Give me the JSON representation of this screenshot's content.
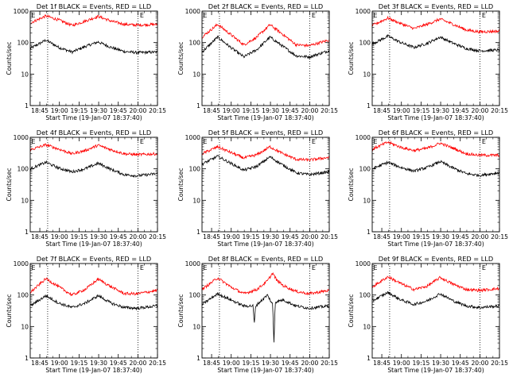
{
  "window": {
    "title": ""
  },
  "figure": {
    "background": "#ffffff",
    "axis_color": "#000000",
    "series_colors": {
      "events": "#000000",
      "lld": "#ff0000"
    }
  },
  "chart_data": [
    {
      "type": "line",
      "detector": "1f",
      "title": "Det 1f BLACK = Events, RED = LLD",
      "xlabel": "Start Time (19-Jan-07 18:37:40)",
      "ylabel": "Counts/sec",
      "x_ticks": [
        "18:45",
        "19:00",
        "19:15",
        "19:30",
        "19:45",
        "20:00",
        "20:15"
      ],
      "y_ticks": [
        "1",
        "10",
        "100",
        "1000"
      ],
      "ylim": [
        1,
        1000
      ],
      "y_scale": "log",
      "grid": false,
      "xlim_minutes_after_start": [
        0,
        97.3
      ],
      "annotations": [
        "E",
        "E"
      ],
      "dotted_vertical_lines_at": [
        "18:51",
        "20:00"
      ],
      "series": [
        {
          "name": "Events",
          "color": "#000000",
          "x_minutes": [
            0,
            12,
            22,
            32,
            42,
            52,
            62,
            72,
            82,
            97
          ],
          "values": [
            65,
            120,
            70,
            50,
            75,
            105,
            70,
            52,
            48,
            50
          ]
        },
        {
          "name": "LLD",
          "color": "#ff0000",
          "x_minutes": [
            0,
            12,
            22,
            32,
            42,
            52,
            62,
            72,
            82,
            97
          ],
          "values": [
            420,
            700,
            520,
            350,
            480,
            680,
            480,
            380,
            360,
            380
          ]
        }
      ]
    },
    {
      "type": "line",
      "detector": "2f",
      "title": "Det 2f BLACK = Events, RED = LLD",
      "xlabel": "Start Time (19-Jan-07 18:37:40)",
      "ylabel": "Counts/sec",
      "x_ticks": [
        "18:45",
        "19:00",
        "19:15",
        "19:30",
        "19:45",
        "20:00",
        "20:15"
      ],
      "y_ticks": [
        "1",
        "10",
        "100",
        "1000"
      ],
      "ylim": [
        1,
        1000
      ],
      "y_scale": "log",
      "grid": false,
      "xlim_minutes_after_start": [
        0,
        97.3
      ],
      "annotations": [
        "E",
        "E"
      ],
      "dotted_vertical_lines_at": [
        "18:51",
        "20:00"
      ],
      "series": [
        {
          "name": "Events",
          "color": "#000000",
          "x_minutes": [
            0,
            12,
            22,
            32,
            42,
            52,
            62,
            72,
            82,
            97
          ],
          "values": [
            50,
            150,
            70,
            35,
            60,
            150,
            75,
            38,
            35,
            55
          ]
        },
        {
          "name": "LLD",
          "color": "#ff0000",
          "x_minutes": [
            0,
            12,
            22,
            32,
            42,
            52,
            62,
            72,
            82,
            97
          ],
          "values": [
            150,
            380,
            180,
            85,
            150,
            370,
            180,
            85,
            80,
            120
          ]
        }
      ]
    },
    {
      "type": "line",
      "detector": "3f",
      "title": "Det 3f BLACK = Events, RED = LLD",
      "xlabel": "Start Time (19-Jan-07 18:37:40)",
      "ylabel": "Counts/sec",
      "x_ticks": [
        "18:45",
        "19:00",
        "19:15",
        "19:30",
        "19:45",
        "20:00",
        "20:15"
      ],
      "y_ticks": [
        "1",
        "10",
        "100",
        "1000"
      ],
      "ylim": [
        1,
        1000
      ],
      "y_scale": "log",
      "grid": false,
      "xlim_minutes_after_start": [
        0,
        97.3
      ],
      "annotations": [
        "E",
        "E"
      ],
      "dotted_vertical_lines_at": [
        "18:51",
        "20:00"
      ],
      "series": [
        {
          "name": "Events",
          "color": "#000000",
          "x_minutes": [
            0,
            12,
            22,
            32,
            42,
            52,
            62,
            72,
            82,
            97
          ],
          "values": [
            90,
            160,
            100,
            70,
            95,
            150,
            95,
            65,
            55,
            58
          ]
        },
        {
          "name": "LLD",
          "color": "#ff0000",
          "x_minutes": [
            0,
            12,
            22,
            32,
            42,
            52,
            62,
            72,
            82,
            97
          ],
          "values": [
            350,
            600,
            400,
            280,
            380,
            560,
            380,
            250,
            220,
            230
          ]
        }
      ]
    },
    {
      "type": "line",
      "detector": "4f",
      "title": "Det 4f BLACK = Events, RED = LLD",
      "xlabel": "Start Time (19-Jan-07 18:37:40)",
      "ylabel": "Counts/sec",
      "x_ticks": [
        "18:45",
        "19:00",
        "19:15",
        "19:30",
        "19:45",
        "20:00",
        "20:15"
      ],
      "y_ticks": [
        "1",
        "10",
        "100",
        "1000"
      ],
      "ylim": [
        1,
        1000
      ],
      "y_scale": "log",
      "grid": false,
      "xlim_minutes_after_start": [
        0,
        97.3
      ],
      "annotations": [
        "E",
        "E"
      ],
      "dotted_vertical_lines_at": [
        "18:51",
        "20:00"
      ],
      "series": [
        {
          "name": "Events",
          "color": "#000000",
          "x_minutes": [
            0,
            12,
            22,
            32,
            42,
            52,
            62,
            72,
            82,
            97
          ],
          "values": [
            100,
            160,
            105,
            80,
            100,
            150,
            95,
            65,
            60,
            70
          ]
        },
        {
          "name": "LLD",
          "color": "#ff0000",
          "x_minutes": [
            0,
            12,
            22,
            32,
            42,
            52,
            62,
            72,
            82,
            97
          ],
          "values": [
            400,
            580,
            420,
            300,
            380,
            560,
            400,
            300,
            280,
            300
          ]
        }
      ]
    },
    {
      "type": "line",
      "detector": "5f",
      "title": "Det 5f BLACK = Events, RED = LLD",
      "xlabel": "Start Time (19-Jan-07 18:37:40)",
      "ylabel": "Counts/sec",
      "x_ticks": [
        "18:45",
        "19:00",
        "19:15",
        "19:30",
        "19:45",
        "20:00",
        "20:15"
      ],
      "y_ticks": [
        "1",
        "10",
        "100",
        "1000"
      ],
      "ylim": [
        1,
        1000
      ],
      "y_scale": "log",
      "grid": false,
      "xlim_minutes_after_start": [
        0,
        97.3
      ],
      "annotations": [
        "E",
        "E"
      ],
      "dotted_vertical_lines_at": [
        "18:51",
        "20:00"
      ],
      "series": [
        {
          "name": "Events",
          "color": "#000000",
          "x_minutes": [
            0,
            12,
            22,
            32,
            42,
            52,
            62,
            72,
            82,
            97
          ],
          "values": [
            140,
            250,
            150,
            90,
            120,
            240,
            130,
            75,
            65,
            80
          ]
        },
        {
          "name": "LLD",
          "color": "#ff0000",
          "x_minutes": [
            0,
            12,
            22,
            32,
            42,
            52,
            62,
            72,
            82,
            97
          ],
          "values": [
            300,
            500,
            330,
            220,
            280,
            500,
            300,
            200,
            190,
            230
          ]
        }
      ]
    },
    {
      "type": "line",
      "detector": "6f",
      "title": "Det 6f BLACK = Events, RED = LLD",
      "xlabel": "Start Time (19-Jan-07 18:37:40)",
      "ylabel": "Counts/sec",
      "x_ticks": [
        "18:45",
        "19:00",
        "19:15",
        "19:30",
        "19:45",
        "20:00",
        "20:15"
      ],
      "y_ticks": [
        "1",
        "10",
        "100",
        "1000"
      ],
      "ylim": [
        1,
        1000
      ],
      "y_scale": "log",
      "grid": false,
      "xlim_minutes_after_start": [
        0,
        97.3
      ],
      "annotations": [
        "E",
        "E"
      ],
      "dotted_vertical_lines_at": [
        "18:51",
        "20:00"
      ],
      "series": [
        {
          "name": "Events",
          "color": "#000000",
          "x_minutes": [
            0,
            12,
            22,
            32,
            42,
            52,
            62,
            72,
            82,
            97
          ],
          "values": [
            100,
            160,
            110,
            85,
            110,
            170,
            105,
            70,
            62,
            75
          ]
        },
        {
          "name": "LLD",
          "color": "#ff0000",
          "x_minutes": [
            0,
            12,
            22,
            32,
            42,
            52,
            62,
            72,
            82,
            97
          ],
          "values": [
            420,
            700,
            480,
            380,
            450,
            650,
            450,
            300,
            270,
            270
          ]
        }
      ]
    },
    {
      "type": "line",
      "detector": "7f",
      "title": "Det 7f BLACK = Events, RED = LLD",
      "xlabel": "Start Time (19-Jan-07 18:37:40)",
      "ylabel": "Counts/sec",
      "x_ticks": [
        "18:45",
        "19:00",
        "19:15",
        "19:30",
        "19:45",
        "20:00",
        "20:15"
      ],
      "y_ticks": [
        "1",
        "10",
        "100",
        "1000"
      ],
      "ylim": [
        1,
        1000
      ],
      "y_scale": "log",
      "grid": false,
      "xlim_minutes_after_start": [
        0,
        97.3
      ],
      "annotations": [
        "E",
        "E"
      ],
      "dotted_vertical_lines_at": [
        "18:51",
        "20:00"
      ],
      "series": [
        {
          "name": "Events",
          "color": "#000000",
          "x_minutes": [
            0,
            12,
            22,
            32,
            42,
            52,
            62,
            72,
            82,
            97
          ],
          "values": [
            45,
            95,
            55,
            40,
            55,
            95,
            55,
            40,
            38,
            45
          ]
        },
        {
          "name": "LLD",
          "color": "#ff0000",
          "x_minutes": [
            0,
            12,
            22,
            32,
            42,
            52,
            62,
            72,
            82,
            97
          ],
          "values": [
            120,
            330,
            180,
            100,
            150,
            320,
            180,
            110,
            110,
            140
          ]
        }
      ]
    },
    {
      "type": "line",
      "detector": "8f",
      "title": "Det 8f BLACK = Events, RED = LLD",
      "xlabel": "Start Time (19-Jan-07 18:37:40)",
      "ylabel": "Counts/sec",
      "x_ticks": [
        "18:45",
        "19:00",
        "19:15",
        "19:30",
        "19:45",
        "20:00",
        "20:15"
      ],
      "y_ticks": [
        "1",
        "10",
        "100",
        "1000"
      ],
      "ylim": [
        1,
        1000
      ],
      "y_scale": "log",
      "grid": false,
      "xlim_minutes_after_start": [
        0,
        97.3
      ],
      "annotations": [
        "E",
        "E"
      ],
      "dotted_vertical_lines_at": [
        "18:51",
        "20:00"
      ],
      "series": [
        {
          "name": "Events",
          "color": "#000000",
          "x_minutes": [
            0,
            12,
            22,
            32,
            39,
            40,
            41,
            50,
            54,
            55,
            56,
            62,
            72,
            82,
            97
          ],
          "values": [
            50,
            110,
            70,
            45,
            45,
            12,
            45,
            100,
            50,
            3,
            60,
            70,
            45,
            38,
            45
          ]
        },
        {
          "name": "LLD",
          "color": "#ff0000",
          "x_minutes": [
            0,
            12,
            22,
            32,
            42,
            50,
            54,
            57,
            62,
            72,
            82,
            97
          ],
          "values": [
            150,
            350,
            180,
            110,
            150,
            280,
            500,
            300,
            200,
            130,
            110,
            140
          ]
        }
      ]
    },
    {
      "type": "line",
      "detector": "9f",
      "title": "Det 9f BLACK = Events, RED = LLD",
      "xlabel": "Start Time (19-Jan-07 18:37:40)",
      "ylabel": "Counts/sec",
      "x_ticks": [
        "18:45",
        "19:00",
        "19:15",
        "19:30",
        "19:45",
        "20:00",
        "20:15"
      ],
      "y_ticks": [
        "1",
        "10",
        "100",
        "1000"
      ],
      "ylim": [
        1,
        1000
      ],
      "y_scale": "log",
      "grid": false,
      "xlim_minutes_after_start": [
        0,
        97.3
      ],
      "annotations": [
        "E",
        "E"
      ],
      "dotted_vertical_lines_at": [
        "18:51",
        "20:00"
      ],
      "series": [
        {
          "name": "Events",
          "color": "#000000",
          "x_minutes": [
            0,
            12,
            22,
            32,
            42,
            52,
            62,
            72,
            82,
            97
          ],
          "values": [
            65,
            120,
            70,
            50,
            65,
            110,
            65,
            45,
            40,
            45
          ]
        },
        {
          "name": "LLD",
          "color": "#ff0000",
          "x_minutes": [
            0,
            12,
            22,
            32,
            42,
            52,
            62,
            72,
            82,
            97
          ],
          "values": [
            180,
            380,
            230,
            150,
            190,
            360,
            220,
            150,
            140,
            160
          ]
        }
      ]
    }
  ]
}
